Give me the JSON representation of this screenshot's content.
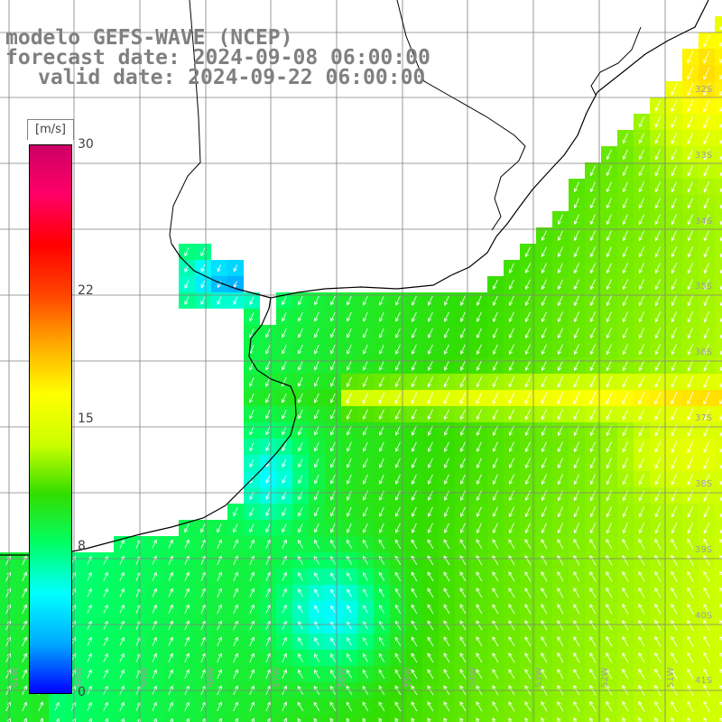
{
  "title": {
    "model": "modelo GEFS-WAVE (NCEP)",
    "forecast": "forecast date: 2024-09-08 06:00:00",
    "valid": "valid date: 2024-09-22 06:00:00"
  },
  "colorbar": {
    "units": "[m/s]",
    "ticks": [
      "30",
      "22",
      "15",
      "8",
      "0"
    ],
    "stops": [
      "#0000ff",
      "#00aaff",
      "#00ffff",
      "#00ff66",
      "#33dd00",
      "#ccff00",
      "#ffff00",
      "#ffaa00",
      "#ff4400",
      "#ff0000",
      "#ff0066",
      "#cc0066"
    ]
  },
  "lat_labels": [
    "32S",
    "33S",
    "34S",
    "35S",
    "36S",
    "37S",
    "38S",
    "39S",
    "40S",
    "41S"
  ],
  "lon_labels": [
    "61W",
    "60W",
    "59W",
    "58W",
    "57W",
    "56W",
    "55W",
    "54W",
    "53W",
    "52W",
    "51W"
  ],
  "colors": {
    "land": "#ffffff",
    "grid": "#808080",
    "coast": "#000000",
    "arrow": "#ffffff"
  }
}
